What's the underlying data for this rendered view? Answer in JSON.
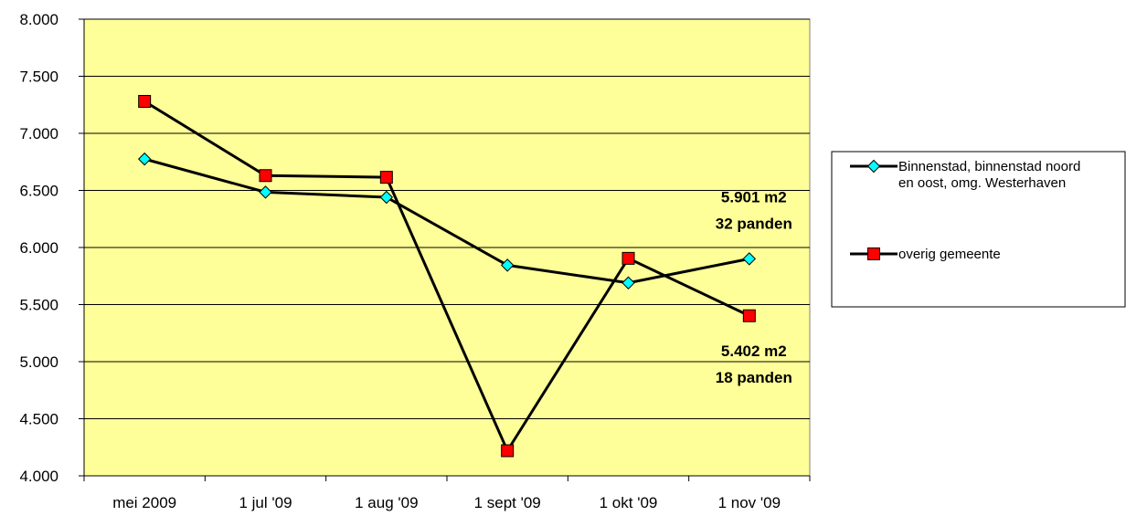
{
  "chart_data": {
    "type": "line",
    "categories": [
      "mei 2009",
      "1 jul '09",
      "1 aug '09",
      "1 sept '09",
      "1 okt '09",
      "1 nov '09"
    ],
    "ylim": [
      4000,
      8000
    ],
    "yticks": [
      4000,
      4500,
      5000,
      5500,
      6000,
      6500,
      7000,
      7500,
      8000
    ],
    "ytick_labels": [
      "4.000",
      "4.500",
      "5.000",
      "5.500",
      "6.000",
      "6.500",
      "7.000",
      "7.500",
      "8.000"
    ],
    "grid": true,
    "legend_position": "right",
    "plot_background": "#ffff99",
    "series": [
      {
        "name": "Binnenstad, binnenstad noord en oost, omg. Westerhaven",
        "legend_lines": [
          "Binnenstad, binnenstad noord",
          "en oost, omg. Westerhaven"
        ],
        "marker": "diamond",
        "marker_color": "#00ffff",
        "line_color": "#000000",
        "values": [
          6775,
          6485,
          6440,
          5845,
          5690,
          5901
        ]
      },
      {
        "name": "overig gemeente",
        "legend_lines": [
          "overig gemeente"
        ],
        "marker": "square",
        "marker_color": "#ff0000",
        "line_color": "#000000",
        "values": [
          7280,
          6630,
          6615,
          4220,
          5905,
          5402
        ]
      }
    ],
    "annotations": [
      {
        "lines": [
          "5.901 m2",
          "32 panden"
        ]
      },
      {
        "lines": [
          "5.402 m2",
          "18 panden"
        ]
      }
    ]
  }
}
